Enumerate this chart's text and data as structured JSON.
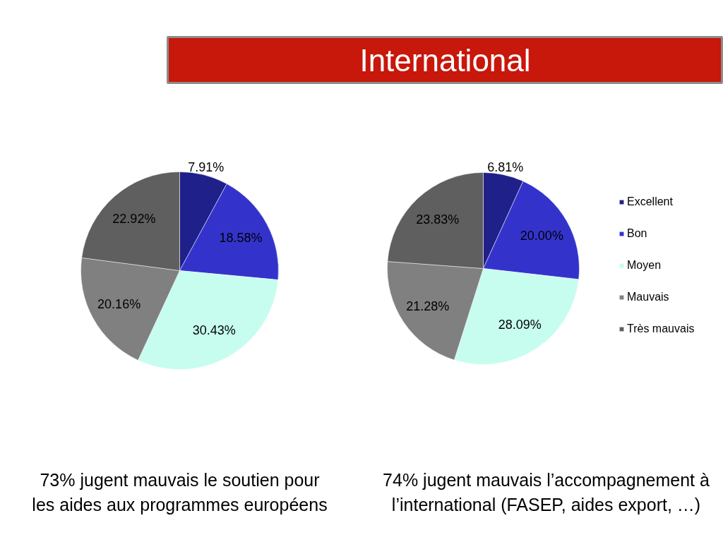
{
  "chart_data": [
    {
      "type": "pie",
      "categories": [
        null,
        null,
        null,
        null,
        null
      ],
      "values": [
        7.91,
        18.58,
        30.43,
        20.16,
        22.92
      ],
      "colors": [
        "#20208a",
        "#3333cc",
        "#c6fdee",
        "#808080",
        "#5f5f5f"
      ],
      "value_labels": [
        "7.91%",
        "18.58%",
        "30.43%",
        "20.16%",
        "22.92%"
      ],
      "legend": false,
      "annotations": [
        "73% jugent mauvais le soutien pour\nles aides aux programmes européens"
      ]
    },
    {
      "type": "pie",
      "title": "International",
      "categories": [
        "Excellent",
        "Bon",
        "Moyen",
        "Mauvais",
        "Très mauvais"
      ],
      "values": [
        6.81,
        20.0,
        28.09,
        21.28,
        23.83
      ],
      "colors": [
        "#20208a",
        "#3333cc",
        "#c6fdee",
        "#808080",
        "#5f5f5f"
      ],
      "value_labels": [
        "6.81%",
        "20.00%",
        "28.09%",
        "21.28%",
        "23.83%"
      ],
      "legend": "right",
      "annotations": [
        "74% jugent mauvais l’accompagnement à\nl’international (FASEP, aides export, …)"
      ]
    }
  ]
}
